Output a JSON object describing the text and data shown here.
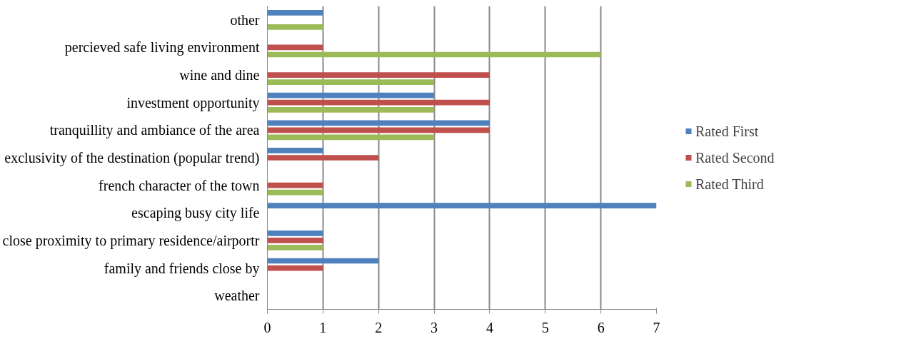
{
  "chart_data": {
    "type": "bar",
    "orientation": "horizontal",
    "categories": [
      "other",
      "percieved safe living environment",
      "wine and dine",
      "investment opportunity",
      "tranquillity and ambiance of the area",
      "exclusivity of the destination (popular trend)",
      "french character of the town",
      "escaping busy city life",
      "close proximity to primary residence/airportr",
      "family and friends close by",
      "weather"
    ],
    "series": [
      {
        "name": "Rated First",
        "color": "#4f81bd",
        "values": [
          1,
          0,
          0,
          3,
          4,
          1,
          0,
          7,
          1,
          2,
          0
        ]
      },
      {
        "name": "Rated Second",
        "color": "#c0504d",
        "values": [
          0,
          1,
          4,
          4,
          4,
          2,
          1,
          0,
          1,
          1,
          0
        ]
      },
      {
        "name": "Rated Third",
        "color": "#9bbb59",
        "values": [
          1,
          6,
          3,
          3,
          3,
          0,
          1,
          0,
          1,
          0,
          0
        ]
      }
    ],
    "xlim": [
      0,
      7
    ],
    "xticks": [
      0,
      1,
      2,
      3,
      4,
      5,
      6,
      7
    ],
    "grid": "x",
    "legend": "right"
  }
}
